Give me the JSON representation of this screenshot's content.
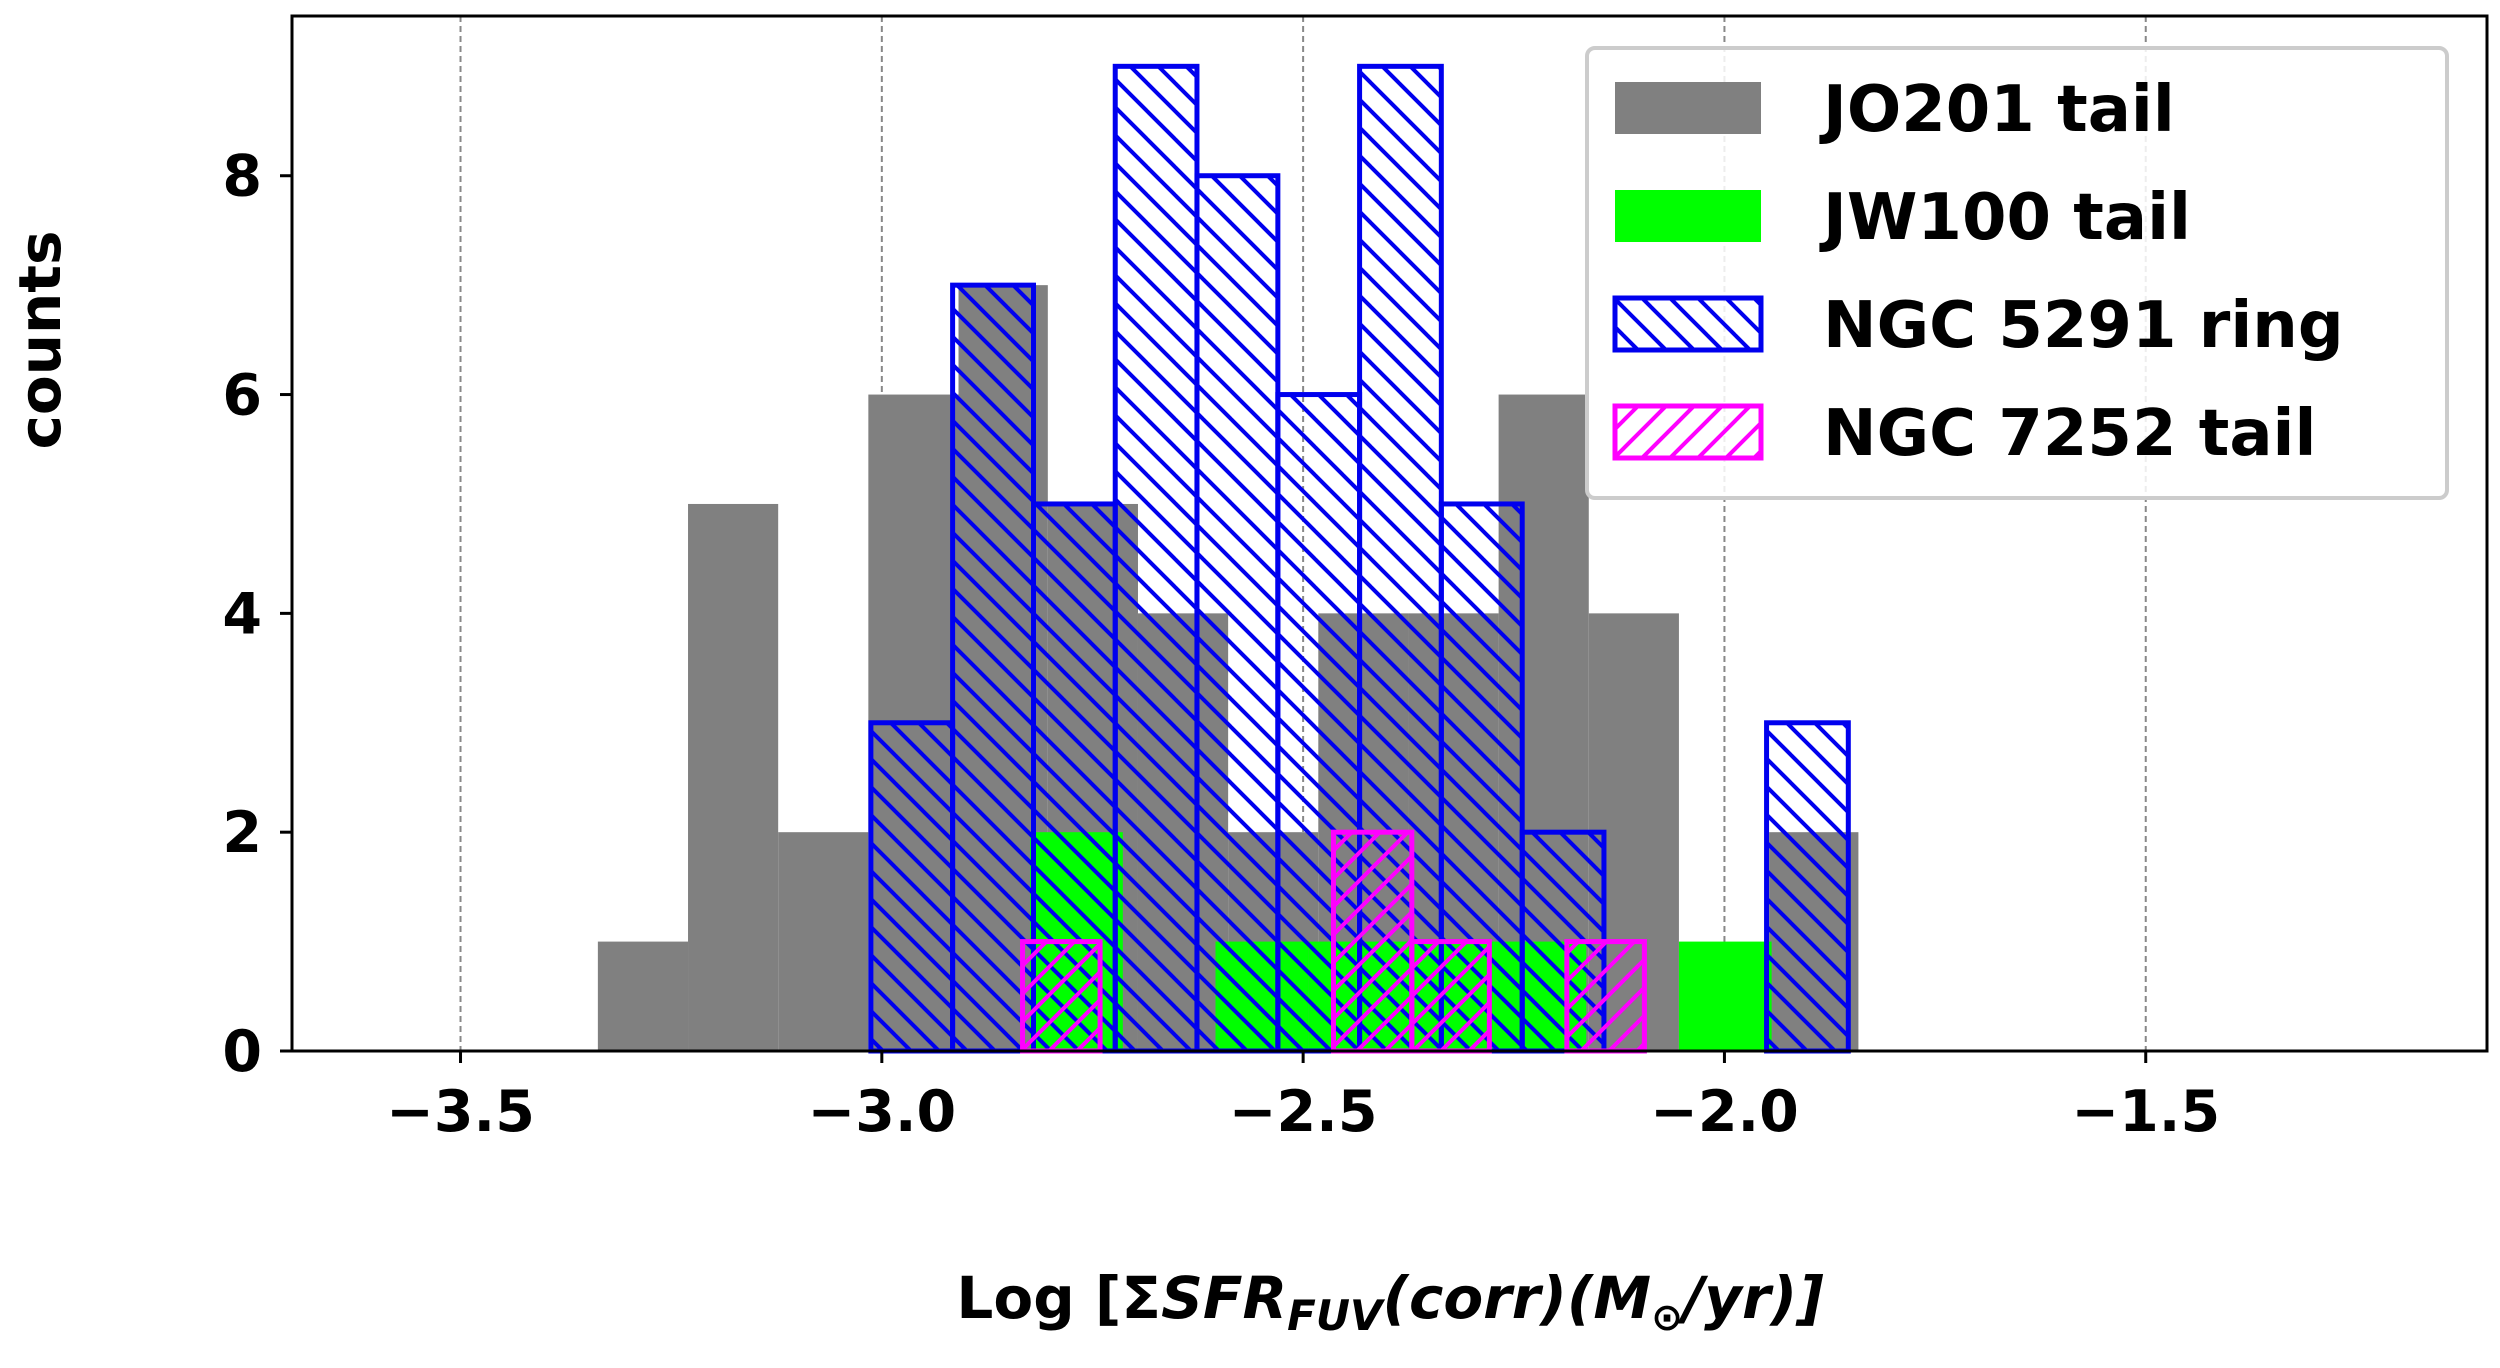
{
  "chart_data": {
    "type": "histogram",
    "xlabel": [
      "Log [Σ",
      "SFR",
      "FUV",
      "(corr)(M",
      "⊙",
      "/yr)]"
    ],
    "ylabel": "counts",
    "xlim": [
      -3.7,
      -1.095
    ],
    "ylim": [
      0,
      9.46
    ],
    "xticks": [
      {
        "value": -3.5,
        "label": "−3.5"
      },
      {
        "value": -3.0,
        "label": "−3.0"
      },
      {
        "value": -2.5,
        "label": "−2.5"
      },
      {
        "value": -2.0,
        "label": "−2.0"
      },
      {
        "value": -1.5,
        "label": "−1.5"
      }
    ],
    "yticks": [
      0,
      2,
      4,
      6,
      8
    ],
    "grid": "x",
    "legend": "upper right",
    "series": [
      {
        "name": "JO201 tail",
        "color": "#808080",
        "hatch": "none",
        "bins": [
          -3.337,
          -3.23,
          -3.123,
          -3.016,
          -2.909,
          -2.803,
          -2.696,
          -2.589,
          -2.482,
          -2.375,
          -2.268,
          -2.161,
          -2.054,
          -1.947,
          -1.841
        ],
        "values": [
          1,
          5,
          2,
          6,
          7,
          5,
          4,
          2,
          4,
          4,
          6,
          4,
          0,
          2
        ]
      },
      {
        "name": "JW100 tail",
        "color": "#00ff00",
        "hatch": "none",
        "bins": [
          -2.824,
          -2.714,
          -2.604,
          -2.494,
          -2.384,
          -2.274,
          -2.164,
          -2.054,
          -1.944
        ],
        "values": [
          2,
          0,
          1,
          1,
          1,
          1,
          0,
          1
        ]
      },
      {
        "name": "NGC 5291 ring",
        "color": "#0000ee",
        "hatch": "\\",
        "bins": [
          -3.013,
          -2.916,
          -2.82,
          -2.723,
          -2.626,
          -2.53,
          -2.433,
          -2.336,
          -2.24,
          -2.143,
          -2.046,
          -1.95,
          -1.853
        ],
        "values": [
          3,
          7,
          5,
          9,
          8,
          6,
          9,
          5,
          2,
          0,
          0,
          3
        ]
      },
      {
        "name": "NGC 7252 tail",
        "color": "#ff00ff",
        "hatch": "/",
        "bins": [
          -2.833,
          -2.741,
          -2.648,
          -2.556,
          -2.464,
          -2.371,
          -2.279,
          -2.187,
          -2.095
        ],
        "values": [
          1,
          0,
          0,
          0,
          2,
          1,
          0,
          1
        ]
      }
    ]
  }
}
